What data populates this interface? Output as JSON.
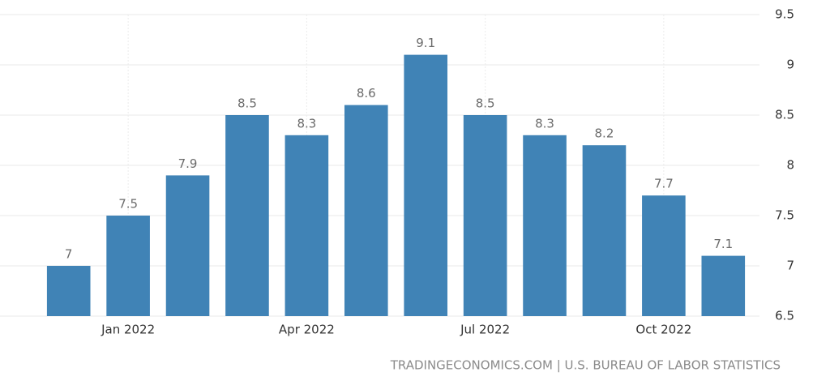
{
  "chart_data": {
    "type": "bar",
    "categories": [
      null,
      "Jan 2022",
      null,
      null,
      "Apr 2022",
      null,
      null,
      "Jul 2022",
      null,
      null,
      "Oct 2022",
      null
    ],
    "values": [
      7,
      7.5,
      7.9,
      8.5,
      8.3,
      8.6,
      9.1,
      8.5,
      8.3,
      8.2,
      7.7,
      7.1
    ],
    "color": "#4083b6",
    "ylim": [
      6.5,
      9.5
    ],
    "yticks": [
      6.5,
      7,
      7.5,
      8,
      8.5,
      9,
      9.5
    ],
    "grid": true,
    "source": "TRADINGECONOMICS.COM | U.S. BUREAU OF LABOR STATISTICS"
  }
}
